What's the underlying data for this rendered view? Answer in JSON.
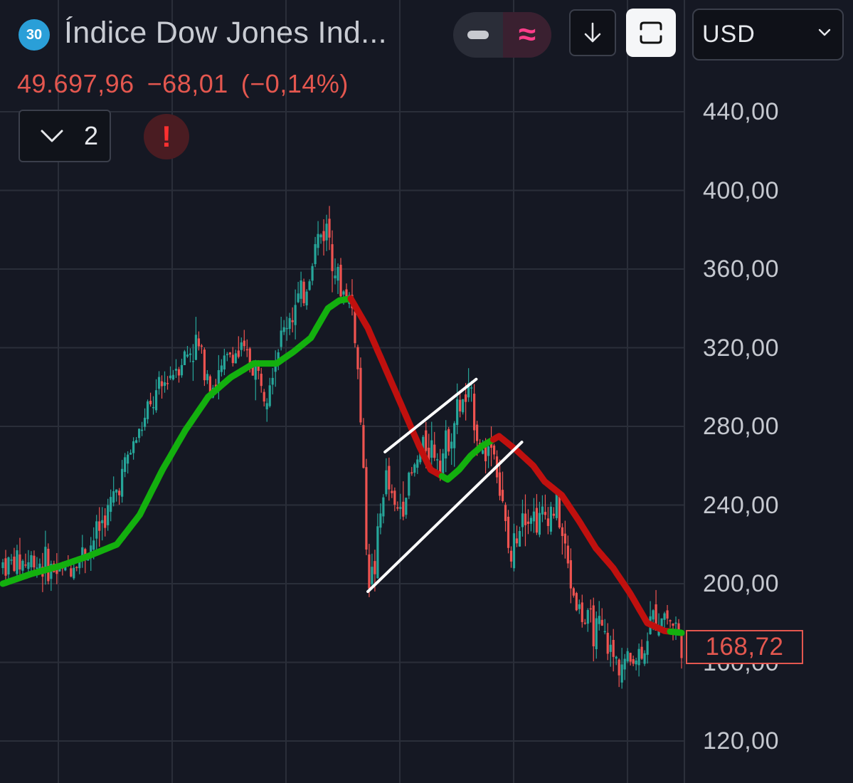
{
  "header": {
    "badge": "30",
    "title": "Índice Dow Jones Ind...",
    "price": "49.697,96",
    "change": "−68,01",
    "change_pct": "(−0,14%)",
    "collapsed_count": "2",
    "currency": "USD",
    "alert_icon": "!",
    "mode_icon": "≈"
  },
  "colors": {
    "background": "#151823",
    "grid": "#2a2e39",
    "up": "#26a69a",
    "down": "#ef5350",
    "ma_up": "#13b00e",
    "ma_down": "#c0100e",
    "accent_pink": "#ff3d8a",
    "negative_text": "#e4574f"
  },
  "icons": {
    "badge": "badge-icon",
    "mode_line": "line-mode-icon",
    "mode_wave": "wave-mode-icon",
    "download": "arrow-down-icon",
    "fullscreen": "fullscreen-icon",
    "currency_dropdown": "chevron-down-icon",
    "collapse": "chevron-down-icon",
    "alert": "alert-icon"
  },
  "chart_data": {
    "type": "candlestick",
    "y_axis": {
      "ticks": [
        "440,00",
        "400,00",
        "360,00",
        "320,00",
        "280,00",
        "240,00",
        "200,00",
        "160,00",
        "120,00"
      ],
      "range": [
        100,
        472
      ]
    },
    "last_price_label": "168,72",
    "grid": true,
    "x_axis": {
      "range": [
        0,
        119
      ]
    },
    "price_path": [
      {
        "x": 0,
        "y": 210
      },
      {
        "x": 6,
        "y": 212
      },
      {
        "x": 10,
        "y": 205
      },
      {
        "x": 15,
        "y": 218
      },
      {
        "x": 19,
        "y": 240
      },
      {
        "x": 22,
        "y": 265
      },
      {
        "x": 26,
        "y": 290
      },
      {
        "x": 30,
        "y": 310
      },
      {
        "x": 34,
        "y": 322
      },
      {
        "x": 37,
        "y": 300
      },
      {
        "x": 40,
        "y": 318
      },
      {
        "x": 43,
        "y": 315
      },
      {
        "x": 46,
        "y": 300
      },
      {
        "x": 50,
        "y": 335
      },
      {
        "x": 53,
        "y": 348
      },
      {
        "x": 55,
        "y": 375
      },
      {
        "x": 57,
        "y": 382
      },
      {
        "x": 59,
        "y": 350
      },
      {
        "x": 61,
        "y": 345
      },
      {
        "x": 62,
        "y": 320
      },
      {
        "x": 63,
        "y": 270
      },
      {
        "x": 64,
        "y": 205
      },
      {
        "x": 65,
        "y": 203
      },
      {
        "x": 67,
        "y": 255
      },
      {
        "x": 69,
        "y": 235
      },
      {
        "x": 71,
        "y": 250
      },
      {
        "x": 74,
        "y": 272
      },
      {
        "x": 77,
        "y": 265
      },
      {
        "x": 80,
        "y": 290
      },
      {
        "x": 82,
        "y": 295
      },
      {
        "x": 84,
        "y": 265
      },
      {
        "x": 86,
        "y": 272
      },
      {
        "x": 87,
        "y": 250
      },
      {
        "x": 89,
        "y": 210
      },
      {
        "x": 91,
        "y": 240
      },
      {
        "x": 94,
        "y": 232
      },
      {
        "x": 97,
        "y": 240
      },
      {
        "x": 100,
        "y": 195
      },
      {
        "x": 102,
        "y": 180
      },
      {
        "x": 105,
        "y": 175
      },
      {
        "x": 107,
        "y": 162
      },
      {
        "x": 109,
        "y": 160
      },
      {
        "x": 112,
        "y": 165
      },
      {
        "x": 114,
        "y": 182
      },
      {
        "x": 116,
        "y": 185
      },
      {
        "x": 118,
        "y": 178
      },
      {
        "x": 119,
        "y": 168.72
      }
    ],
    "moving_average": {
      "points": [
        {
          "x": 0,
          "y": 200
        },
        {
          "x": 5,
          "y": 205
        },
        {
          "x": 10,
          "y": 209
        },
        {
          "x": 15,
          "y": 214
        },
        {
          "x": 20,
          "y": 220
        },
        {
          "x": 24,
          "y": 235
        },
        {
          "x": 28,
          "y": 258
        },
        {
          "x": 32,
          "y": 278
        },
        {
          "x": 36,
          "y": 295
        },
        {
          "x": 40,
          "y": 305
        },
        {
          "x": 44,
          "y": 312
        },
        {
          "x": 48,
          "y": 312
        },
        {
          "x": 51,
          "y": 318
        },
        {
          "x": 54,
          "y": 325
        },
        {
          "x": 57,
          "y": 340
        },
        {
          "x": 59,
          "y": 344
        },
        {
          "x": 61,
          "y": 345
        },
        {
          "x": 64,
          "y": 330
        },
        {
          "x": 67,
          "y": 310
        },
        {
          "x": 70,
          "y": 290
        },
        {
          "x": 73,
          "y": 270
        },
        {
          "x": 75,
          "y": 258
        },
        {
          "x": 78,
          "y": 253
        },
        {
          "x": 80,
          "y": 258
        },
        {
          "x": 82,
          "y": 265
        },
        {
          "x": 84,
          "y": 270
        },
        {
          "x": 87,
          "y": 275
        },
        {
          "x": 90,
          "y": 268
        },
        {
          "x": 93,
          "y": 260
        },
        {
          "x": 95,
          "y": 252
        },
        {
          "x": 98,
          "y": 245
        },
        {
          "x": 101,
          "y": 232
        },
        {
          "x": 104,
          "y": 218
        },
        {
          "x": 107,
          "y": 208
        },
        {
          "x": 110,
          "y": 195
        },
        {
          "x": 113,
          "y": 180
        },
        {
          "x": 116,
          "y": 176
        },
        {
          "x": 119,
          "y": 175
        }
      ],
      "segments": [
        {
          "trend": "up",
          "from": 0,
          "to": 61
        },
        {
          "trend": "down",
          "from": 61,
          "to": 77
        },
        {
          "trend": "up",
          "from": 77,
          "to": 86
        },
        {
          "trend": "down",
          "from": 86,
          "to": 117
        },
        {
          "trend": "up",
          "from": 117,
          "to": 119
        }
      ]
    },
    "trendlines": [
      {
        "x1": 67,
        "y1": 267,
        "x2": 83,
        "y2": 304
      },
      {
        "x1": 64,
        "y1": 196,
        "x2": 91,
        "y2": 272
      }
    ]
  }
}
